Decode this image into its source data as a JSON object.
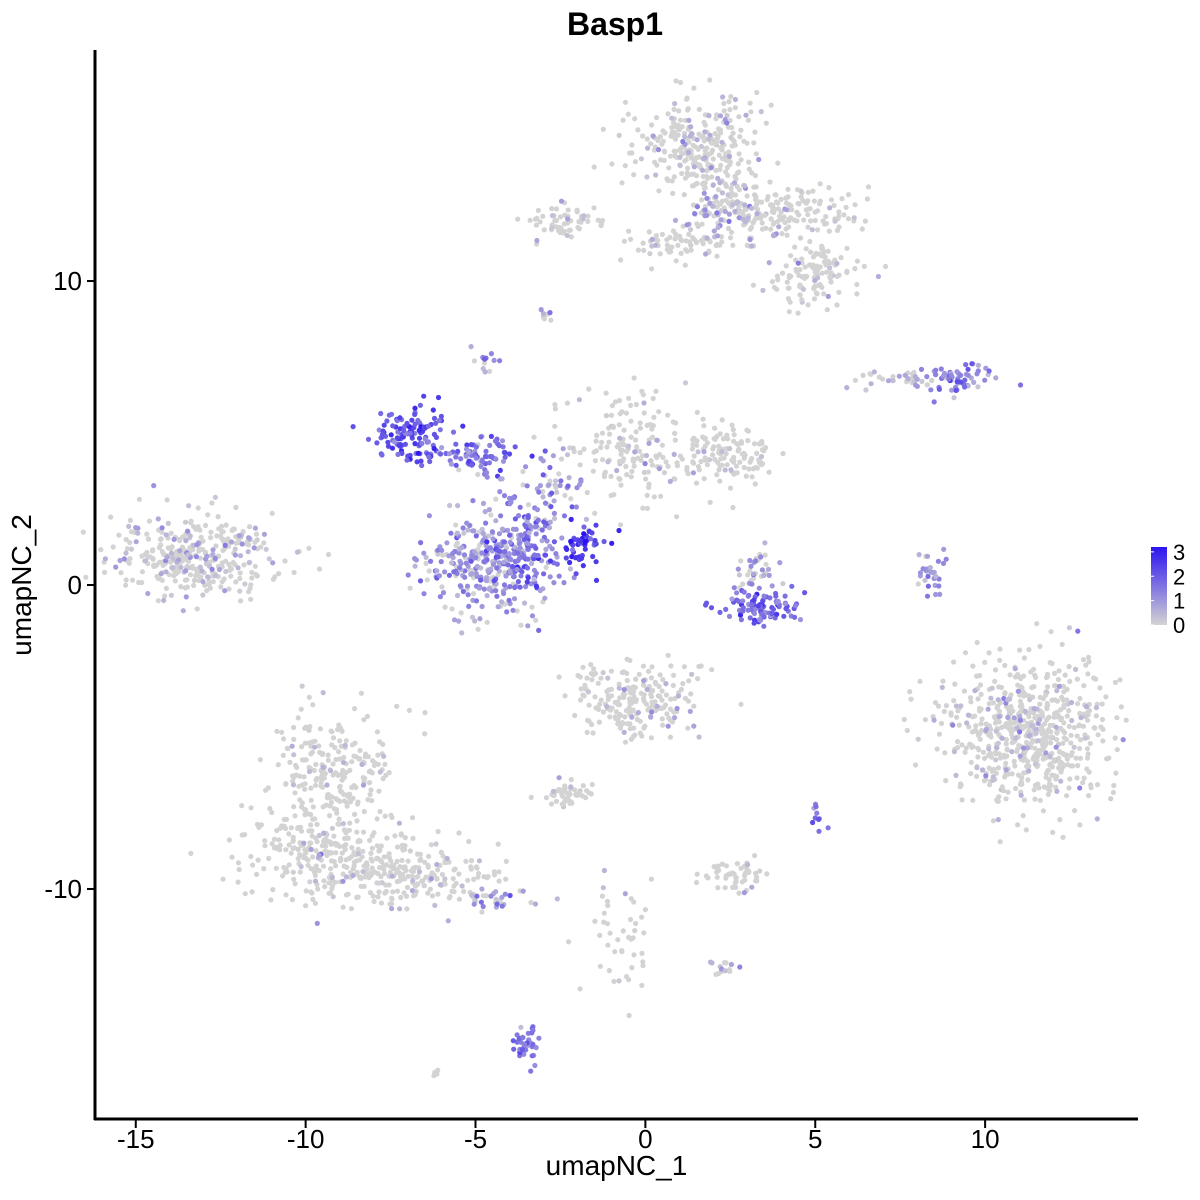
{
  "chart_data": {
    "type": "scatter",
    "title": "Basp1",
    "xlabel": "umapNC_1",
    "ylabel": "umapNC_2",
    "xlim": [
      -16.2,
      14.5
    ],
    "ylim": [
      -17.6,
      17.6
    ],
    "x_ticks": [
      -15,
      -10,
      -5,
      0,
      5,
      10
    ],
    "x_tick_labels": [
      "-15",
      "-10",
      "-5",
      "0",
      "5",
      "10"
    ],
    "y_ticks": [
      -10,
      0,
      10
    ],
    "y_tick_labels": [
      "-10",
      "0",
      "10"
    ],
    "grid": false,
    "color_scale": {
      "low_color": "#d3d3d3",
      "high_color": "#2b14f0",
      "min": 0,
      "max": 3.2,
      "ticks": [
        0,
        1,
        2,
        3
      ],
      "tick_labels": [
        "0",
        "1",
        "2",
        "3"
      ],
      "legend_position": "right"
    },
    "clusters": [
      {
        "center": [
          -13.2,
          1.0
        ],
        "spread": [
          1.3,
          0.65
        ],
        "n": 360,
        "expression": 0.35
      },
      {
        "center": [
          -9.2,
          -6.5
        ],
        "spread": [
          0.9,
          1.2
        ],
        "n": 260,
        "expression": 0.12
      },
      {
        "center": [
          -9.0,
          -9.0
        ],
        "spread": [
          1.4,
          0.7
        ],
        "n": 260,
        "expression": 0.12
      },
      {
        "center": [
          -6.5,
          -9.6
        ],
        "spread": [
          1.2,
          0.45
        ],
        "n": 160,
        "expression": 0.15
      },
      {
        "center": [
          -4.5,
          -10.3
        ],
        "spread": [
          0.5,
          0.2
        ],
        "n": 30,
        "expression": 0.9
      },
      {
        "center": [
          -4.6,
          0.6
        ],
        "spread": [
          1.0,
          0.85
        ],
        "n": 300,
        "expression": 1.0
      },
      {
        "center": [
          -3.7,
          1.2
        ],
        "spread": [
          0.45,
          0.7
        ],
        "n": 120,
        "expression": 1.6
      },
      {
        "center": [
          -7.0,
          5.0
        ],
        "spread": [
          0.5,
          0.45
        ],
        "n": 110,
        "expression": 2.1
      },
      {
        "center": [
          -5.0,
          4.3
        ],
        "spread": [
          0.9,
          0.3
        ],
        "n": 90,
        "expression": 1.6
      },
      {
        "center": [
          -3.0,
          3.0
        ],
        "spread": [
          0.7,
          0.8
        ],
        "n": 70,
        "expression": 1.0
      },
      {
        "center": [
          -1.8,
          1.3
        ],
        "spread": [
          0.4,
          0.4
        ],
        "n": 50,
        "expression": 2.6
      },
      {
        "center": [
          -0.5,
          4.5
        ],
        "spread": [
          1.0,
          0.9
        ],
        "n": 160,
        "expression": 0.15
      },
      {
        "center": [
          2.2,
          4.2
        ],
        "spread": [
          0.8,
          0.5
        ],
        "n": 130,
        "expression": 0.2
      },
      {
        "center": [
          1.5,
          14.5
        ],
        "spread": [
          0.9,
          0.8
        ],
        "n": 300,
        "expression": 0.25
      },
      {
        "center": [
          2.4,
          12.3
        ],
        "spread": [
          0.6,
          0.6
        ],
        "n": 120,
        "expression": 0.6
      },
      {
        "center": [
          4.3,
          12.2
        ],
        "spread": [
          0.9,
          0.4
        ],
        "n": 150,
        "expression": 0.15
      },
      {
        "center": [
          5.0,
          10.2
        ],
        "spread": [
          0.7,
          0.5
        ],
        "n": 120,
        "expression": 0.15
      },
      {
        "center": [
          -2.4,
          12.0
        ],
        "spread": [
          0.6,
          0.3
        ],
        "n": 60,
        "expression": 0.2
      },
      {
        "center": [
          0.8,
          11.2
        ],
        "spread": [
          0.7,
          0.3
        ],
        "n": 60,
        "expression": 0.2
      },
      {
        "center": [
          9.2,
          6.8
        ],
        "spread": [
          0.6,
          0.25
        ],
        "n": 60,
        "expression": 1.3
      },
      {
        "center": [
          7.6,
          6.8
        ],
        "spread": [
          0.6,
          0.15
        ],
        "n": 35,
        "expression": 0.6
      },
      {
        "center": [
          3.4,
          -0.7
        ],
        "spread": [
          0.6,
          0.3
        ],
        "n": 90,
        "expression": 1.7
      },
      {
        "center": [
          3.2,
          0.4
        ],
        "spread": [
          0.4,
          0.5
        ],
        "n": 40,
        "expression": 0.8
      },
      {
        "center": [
          8.4,
          0.5
        ],
        "spread": [
          0.2,
          0.4
        ],
        "n": 30,
        "expression": 1.1
      },
      {
        "center": [
          11.3,
          -4.8
        ],
        "spread": [
          1.15,
          1.2
        ],
        "n": 650,
        "expression": 0.22
      },
      {
        "center": [
          -0.3,
          -3.8
        ],
        "spread": [
          0.9,
          0.65
        ],
        "n": 220,
        "expression": 0.2
      },
      {
        "center": [
          -2.2,
          -6.9
        ],
        "spread": [
          0.35,
          0.2
        ],
        "n": 50,
        "expression": 0.05
      },
      {
        "center": [
          2.6,
          -9.5
        ],
        "spread": [
          0.5,
          0.3
        ],
        "n": 50,
        "expression": 0.1
      },
      {
        "center": [
          -0.6,
          -11.3
        ],
        "spread": [
          0.6,
          1.1
        ],
        "n": 45,
        "expression": 0.05
      },
      {
        "center": [
          -3.5,
          -15.1
        ],
        "spread": [
          0.2,
          0.4
        ],
        "n": 35,
        "expression": 1.5
      },
      {
        "center": [
          -2.9,
          8.8
        ],
        "spread": [
          0.1,
          0.1
        ],
        "n": 8,
        "expression": 0.7
      },
      {
        "center": [
          -4.8,
          7.4
        ],
        "spread": [
          0.2,
          0.2
        ],
        "n": 12,
        "expression": 1.1
      },
      {
        "center": [
          5.0,
          -7.5
        ],
        "spread": [
          0.1,
          0.3
        ],
        "n": 10,
        "expression": 1.6
      },
      {
        "center": [
          2.5,
          -12.6
        ],
        "spread": [
          0.4,
          0.15
        ],
        "n": 15,
        "expression": 0.6
      },
      {
        "center": [
          -6.1,
          -16.1
        ],
        "spread": [
          0.1,
          0.1
        ],
        "n": 4,
        "expression": 0.0
      }
    ]
  }
}
